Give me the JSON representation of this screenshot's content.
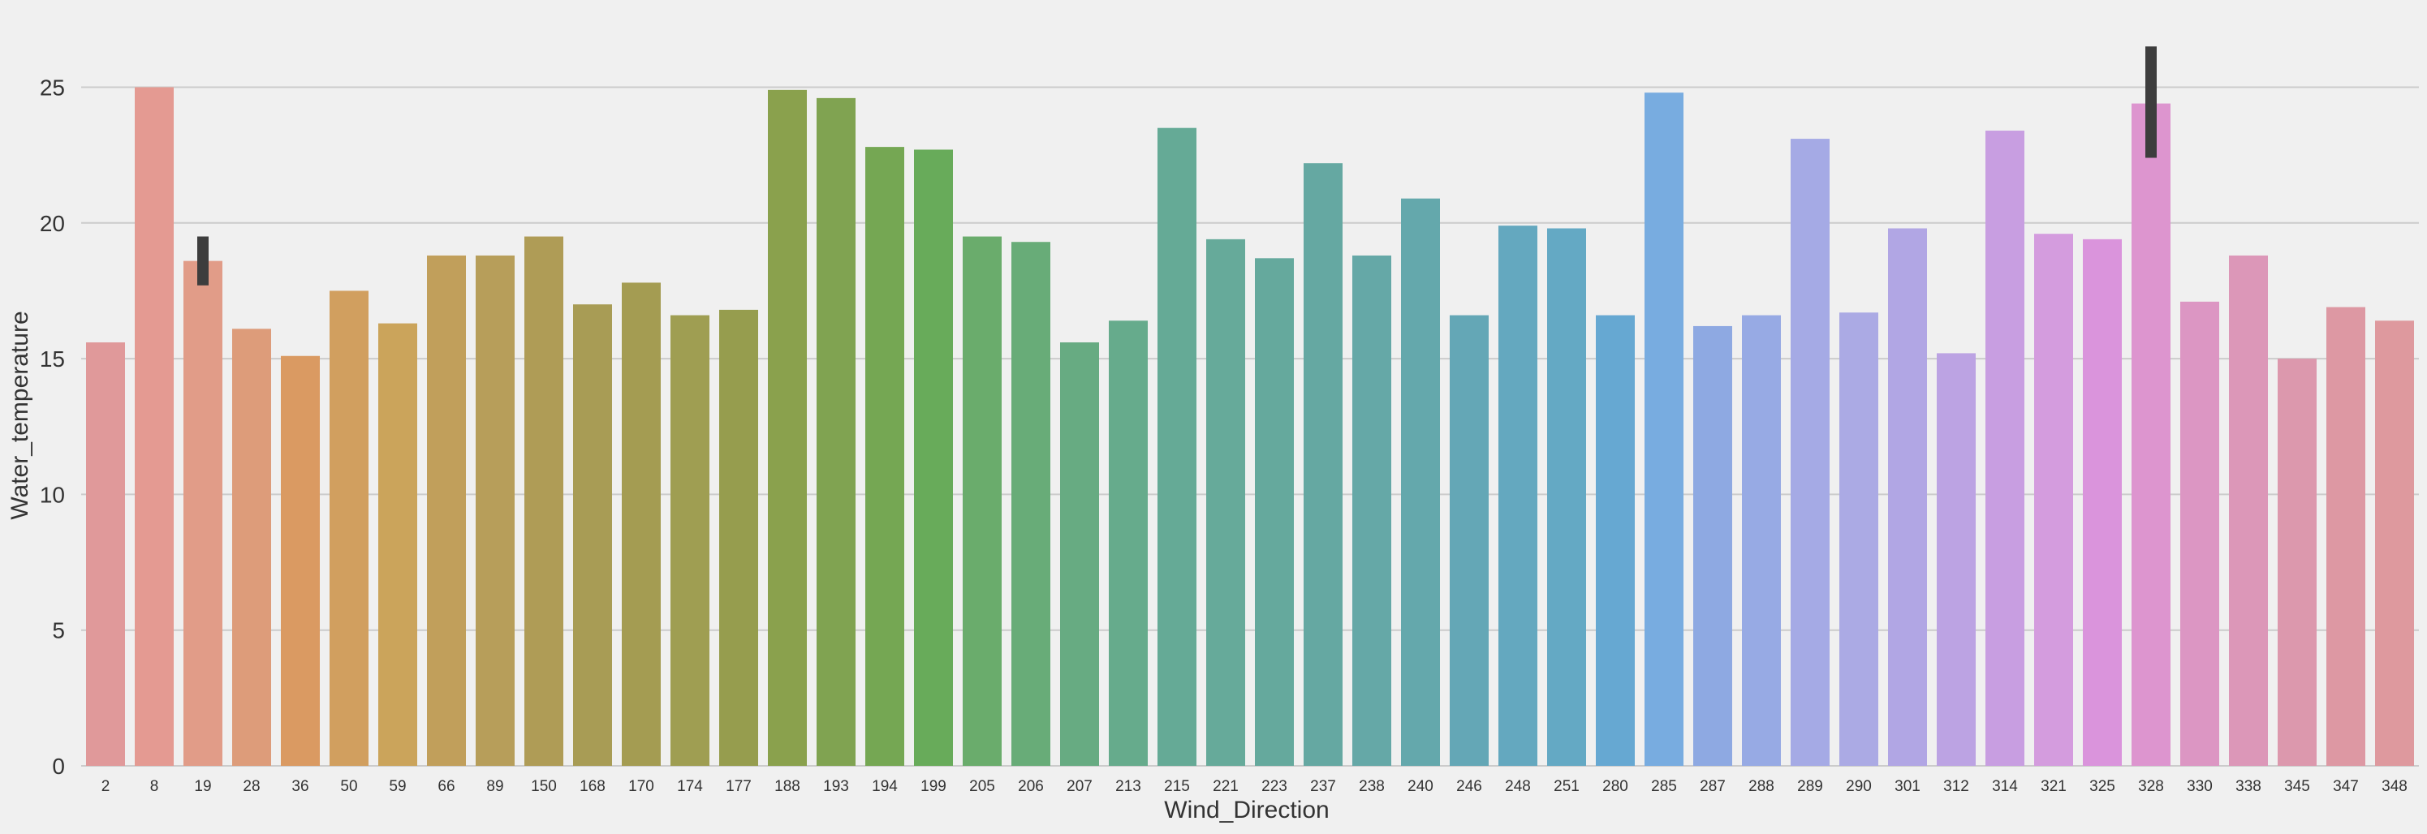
{
  "chart_data": {
    "type": "bar",
    "title": "",
    "xlabel": "Wind_Direction",
    "ylabel": "Water_temperature",
    "ylim": [
      0,
      27
    ],
    "yticks": [
      0,
      5,
      10,
      15,
      20,
      25
    ],
    "grid": true,
    "categories": [
      "2",
      "8",
      "19",
      "28",
      "36",
      "50",
      "59",
      "66",
      "89",
      "150",
      "168",
      "170",
      "174",
      "177",
      "188",
      "193",
      "194",
      "199",
      "205",
      "206",
      "207",
      "213",
      "215",
      "221",
      "223",
      "237",
      "238",
      "240",
      "246",
      "248",
      "251",
      "280",
      "285",
      "287",
      "288",
      "289",
      "290",
      "301",
      "312",
      "314",
      "321",
      "325",
      "328",
      "330",
      "338",
      "345",
      "347",
      "348"
    ],
    "values": [
      15.6,
      25.0,
      18.6,
      16.1,
      15.1,
      17.5,
      16.3,
      18.8,
      18.8,
      19.5,
      17.0,
      17.8,
      16.6,
      16.8,
      24.9,
      24.6,
      22.8,
      22.7,
      19.5,
      19.3,
      15.6,
      16.4,
      23.5,
      19.4,
      18.7,
      22.2,
      18.8,
      20.9,
      16.6,
      19.9,
      19.8,
      16.6,
      24.8,
      16.2,
      16.6,
      23.1,
      16.7,
      19.8,
      15.2,
      23.4,
      19.6,
      19.4,
      24.4,
      17.1,
      18.8,
      15.0,
      16.9,
      16.4
    ],
    "error_bars": [
      {
        "category": "19",
        "low": 17.7,
        "high": 19.5
      },
      {
        "category": "328",
        "low": 22.4,
        "high": 26.5
      }
    ],
    "colors": [
      "#e0999a",
      "#e49a92",
      "#e19c88",
      "#dd9c7a",
      "#da9a62",
      "#d19f5f",
      "#cba45b",
      "#c19f5b",
      "#b79e5a",
      "#af9c56",
      "#a89c55",
      "#a49c52",
      "#9f9e52",
      "#969d4e",
      "#8aa14d",
      "#80a351",
      "#75a753",
      "#68ab5a",
      "#6aac6c",
      "#68ac78",
      "#67ab82",
      "#66ab8c",
      "#65aa96",
      "#66aa9a",
      "#65a99d",
      "#65a8a2",
      "#65a8a7",
      "#64a8ac",
      "#64a7b6",
      "#64a8bf",
      "#64a9c4",
      "#66a8d2",
      "#78ace0",
      "#8ea9e2",
      "#97aae4",
      "#a5aae5",
      "#abaae4",
      "#b1a6e4",
      "#bca3e3",
      "#c89ee1",
      "#d49cde",
      "#da94dc",
      "#dd95cf",
      "#dc96c3",
      "#dc97b8",
      "#dc98ad",
      "#dd98a3",
      "#de999e"
    ],
    "errorbar_color": "#3d3d3d"
  }
}
